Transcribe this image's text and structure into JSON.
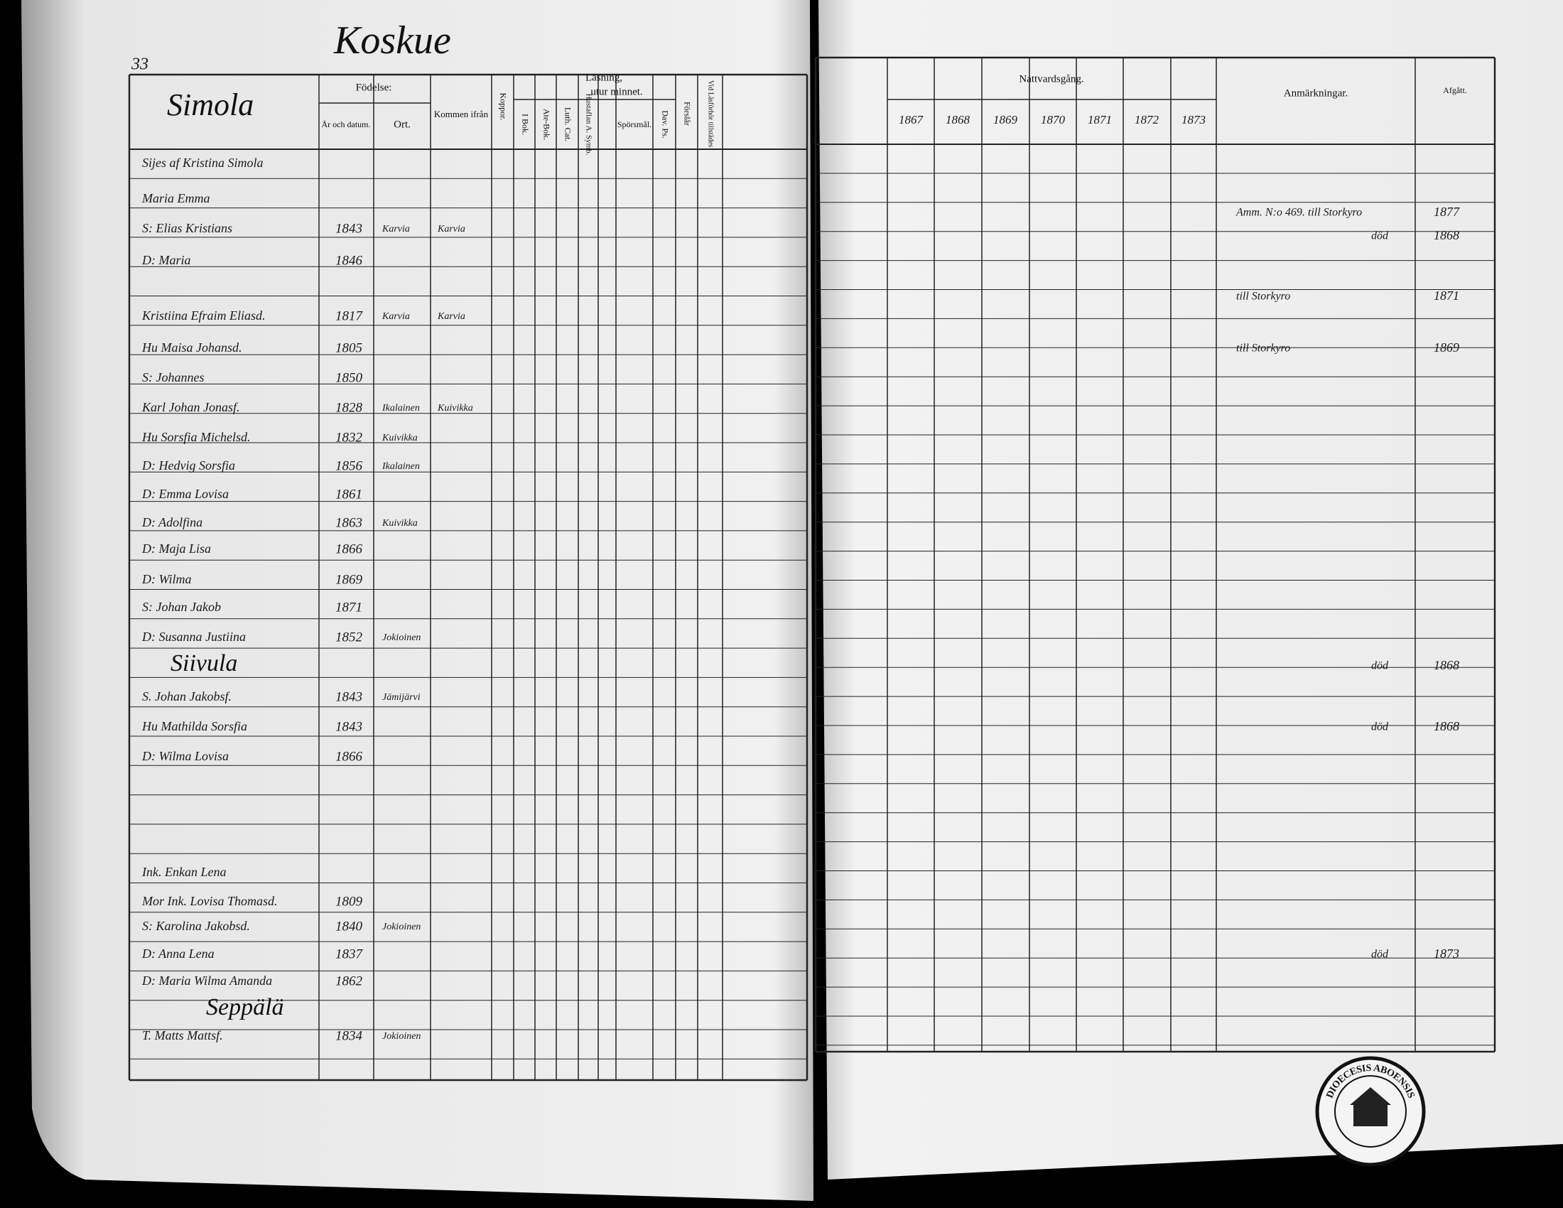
{
  "page_number": "33",
  "village": "Koskue",
  "left_page": {
    "farm": "Simola",
    "headers": {
      "birth": "Födelse:",
      "date": "År och datum.",
      "place": "Ort.",
      "came_from": "Kommen ifrån",
      "smallpox": "Koppor.",
      "reading": "Läsning,",
      "by_heart": "utur minnet.",
      "in_book": "I Bok.",
      "abc_book": "Ate-Bok.",
      "luth_cat": "Luth. Cat.",
      "house_table": "Hustaflan A. Symb.",
      "questions": "Spörsmål.",
      "psalms": "Dav. Ps.",
      "understanding": "Förslår",
      "present": "Vid Läsförhör tillstädes"
    },
    "rows": [
      {
        "name": "Sijes af Kristina Simola"
      },
      {
        "name": "Maria Emma"
      },
      {
        "name": "S: Elias Kristians",
        "date": "1843",
        "place": "Karvia",
        "from": "Karvia"
      },
      {
        "name": "D: Maria",
        "date": "1846"
      },
      {
        "name": "Kristiina Efraim Eliasd.",
        "date": "1817",
        "place": "Karvia",
        "from": "Karvia"
      },
      {
        "name": "Hu Maisa Johansd.",
        "date": "1805"
      },
      {
        "name": "S: Johannes",
        "date": "1850"
      },
      {
        "name": "Karl Johan Jonasf.",
        "date": "1828",
        "place": "Ikalainen",
        "from": "Kuivikka"
      },
      {
        "name": "Hu Sorsfia Michelsd.",
        "date": "1832",
        "place": "Kuivikka"
      },
      {
        "name": "D: Hedvig Sorsfia",
        "date": "1856",
        "place": "Ikalainen"
      },
      {
        "name": "D: Emma Lovisa",
        "date": "1861"
      },
      {
        "name": "D: Adolfina",
        "date": "1863",
        "place": "Kuivikka"
      },
      {
        "name": "D: Maja Lisa",
        "date": "1866"
      },
      {
        "name": "D: Wilma",
        "date": "1869"
      },
      {
        "name": "S: Johan Jakob",
        "date": "1871"
      },
      {
        "name": "D: Susanna Justiina",
        "date": "1852",
        "place": "Jokioinen"
      },
      {
        "title": "Siivula"
      },
      {
        "name": "S. Johan Jakobsf.",
        "date": "1843",
        "place": "Jämijärvi"
      },
      {
        "name": "Hu Mathilda Sorsfia",
        "date": "1843"
      },
      {
        "name": "D: Wilma Lovisa",
        "date": "1866"
      },
      {
        "name": "Ink. Enkan Lena"
      },
      {
        "name": "Mor Ink. Lovisa Thomasd.",
        "date": "1809"
      },
      {
        "name": "S: Karolina Jakobsd.",
        "date": "1840",
        "place": "Jokioinen"
      },
      {
        "name": "D: Anna Lena",
        "date": "1837"
      },
      {
        "name": "D: Maria Wilma Amanda",
        "date": "1862"
      },
      {
        "title": "Seppälä"
      },
      {
        "name": "T. Matts Mattsf.",
        "date": "1834",
        "place": "Jokioinen"
      }
    ]
  },
  "right_page": {
    "headers": {
      "communion": "Nattvardsgång.",
      "years": [
        "1867",
        "1868",
        "1869",
        "1870",
        "1871",
        "1872",
        "1873"
      ],
      "remarks": "Anmärkningar.",
      "departed": "Afgått."
    },
    "rows": [
      {
        "remark": "Amm. N:o 469. till Storkyro",
        "departed": "1877"
      },
      {
        "remark": "död",
        "departed": "1868"
      },
      {
        "remark": "till Storkyro",
        "departed": "1871"
      },
      {
        "remark": "till Storkyro",
        "departed": "1869"
      },
      {
        "remark": "död",
        "departed": "1868"
      },
      {
        "remark": "död",
        "departed": "1868"
      },
      {
        "remark": "död",
        "departed": "1873"
      }
    ]
  },
  "stamp": "DIOECESIS ABOENSIS"
}
